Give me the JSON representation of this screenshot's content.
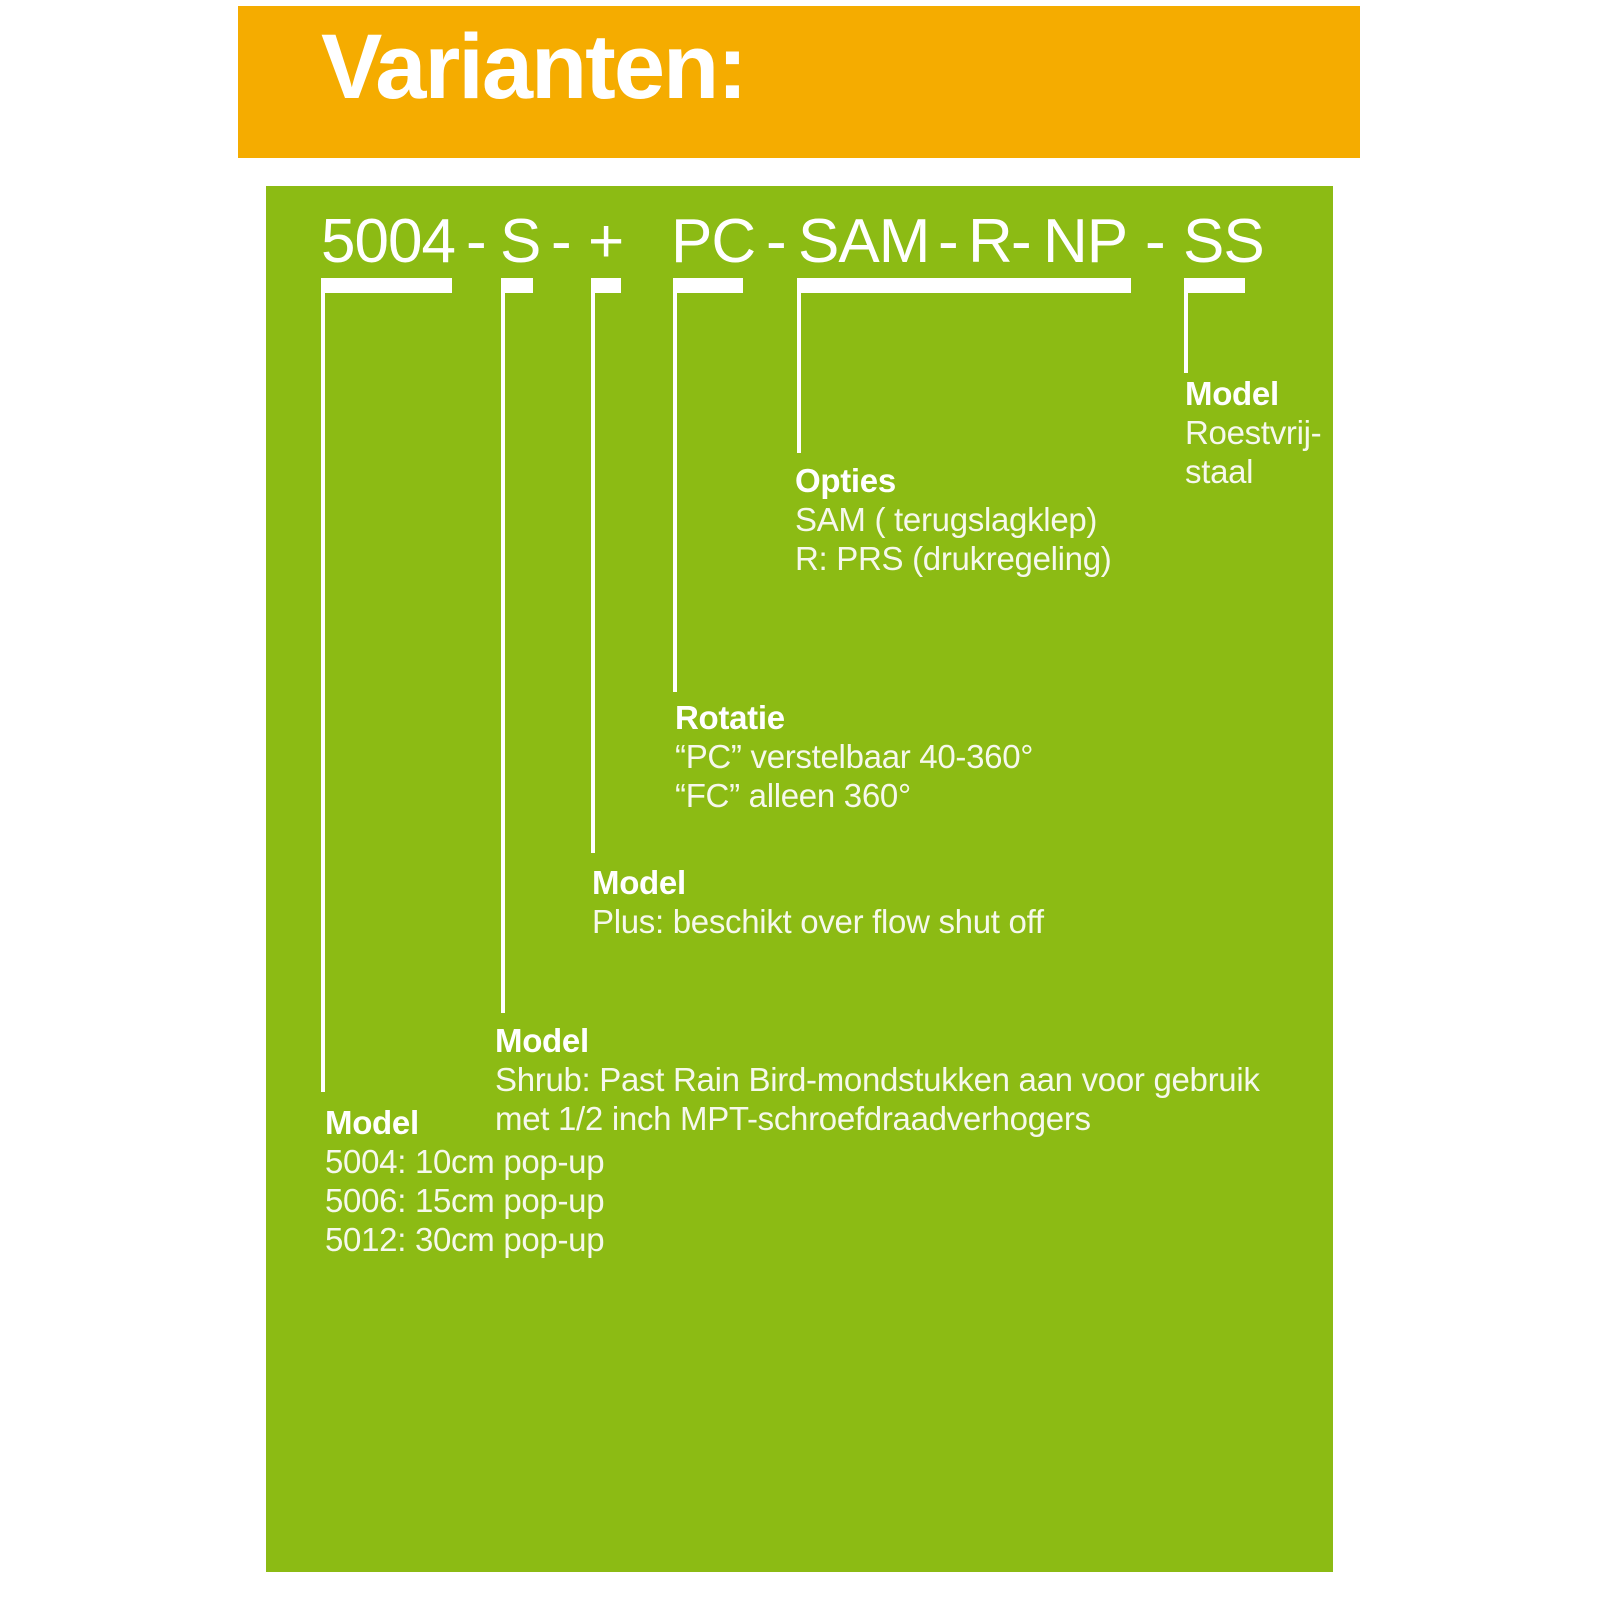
{
  "header": {
    "title": "Varianten:"
  },
  "colors": {
    "banner_orange": "#F5AC00",
    "panel_green": "#8CBB14",
    "text_white": "#FFFFFF"
  },
  "product_code": {
    "display": "5004 - S - + PC - SAM - R - NP - SS",
    "tokens": [
      "5004",
      "-",
      "S",
      "-",
      "+",
      "PC",
      "-",
      "SAM",
      "-",
      "R",
      "-",
      "NP",
      "-",
      "SS"
    ]
  },
  "annotations": [
    {
      "id": "ss",
      "heading": "Model",
      "lines": [
        "Roestvrij-",
        "staal"
      ]
    },
    {
      "id": "sam-r-np",
      "heading": "Opties",
      "lines": [
        "SAM ( terugslagklep)",
        "R: PRS (drukregeling)"
      ]
    },
    {
      "id": "pc",
      "heading": "Rotatie",
      "lines": [
        "“PC” verstelbaar 40-360°",
        "“FC” alleen 360°"
      ]
    },
    {
      "id": "plus",
      "heading": "Model",
      "lines": [
        "Plus: beschikt over flow shut off"
      ]
    },
    {
      "id": "s",
      "heading": "Model",
      "lines": [
        "Shrub: Past Rain Bird-mondstukken aan voor gebruik",
        "met 1/2 inch MPT-schroefdraadverhogers"
      ]
    },
    {
      "id": "5004",
      "heading": "Model",
      "lines": [
        "5004: 10cm pop-up",
        "5006: 15cm pop-up",
        "5012: 30cm pop-up"
      ]
    }
  ]
}
